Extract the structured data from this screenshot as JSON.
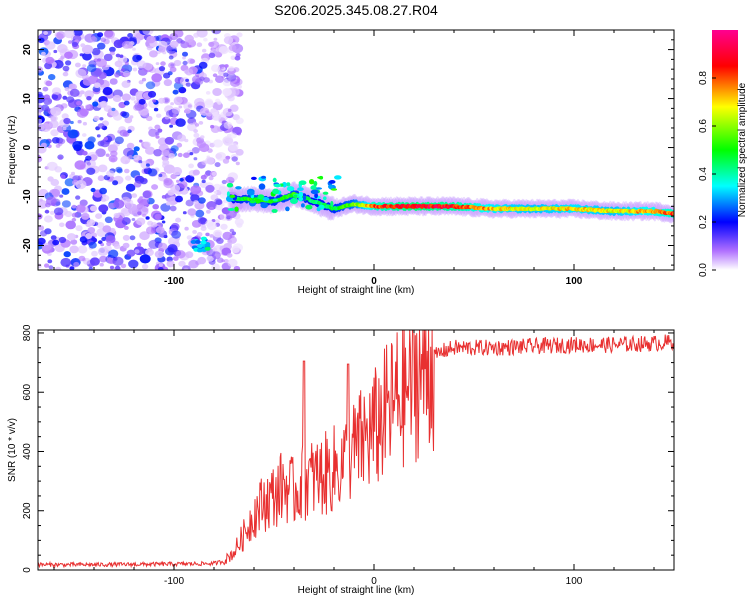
{
  "title": "S206.2025.345.08.27.R04",
  "colorbar": {
    "label": "Normalized spectral amplitude",
    "ticks": [
      0.0,
      0.2,
      0.4,
      0.6,
      0.8
    ],
    "tick_labels": [
      "0.0",
      "0.2",
      "0.4",
      "0.6",
      "0.8"
    ],
    "range": [
      0,
      1
    ],
    "colors": [
      "#ffffff",
      "#a050ff",
      "#0000ff",
      "#00ffff",
      "#00ff00",
      "#ffff00",
      "#ff0000",
      "#ff0080"
    ]
  },
  "chart_data": [
    {
      "type": "heatmap",
      "xlabel": "Height of straight line (km)",
      "ylabel": "Frequency (Hz)",
      "xlim": [
        -168,
        150
      ],
      "ylim": [
        -25,
        24
      ],
      "x_ticks": [
        -100,
        0,
        100
      ],
      "x_tick_labels": [
        "-100",
        "0",
        "100"
      ],
      "y_ticks": [
        -20,
        -10,
        0,
        10,
        20
      ],
      "y_tick_labels": [
        "-20",
        "-10",
        "0",
        "10",
        "20"
      ],
      "noise_region_x": [
        -168,
        -73
      ],
      "ridge": {
        "x": [
          -72,
          -60,
          -50,
          -40,
          -30,
          -20,
          -10,
          0,
          20,
          40,
          60,
          80,
          100,
          120,
          140,
          150
        ],
        "freq": [
          -10.5,
          -10.5,
          -11,
          -9.5,
          -11,
          -12.5,
          -11.5,
          -12,
          -12,
          -12,
          -12.5,
          -12.5,
          -12.5,
          -13,
          -13,
          -13.5
        ],
        "amplitude": [
          0.45,
          0.55,
          0.5,
          0.55,
          0.45,
          0.5,
          0.6,
          0.85,
          0.95,
          0.9,
          0.75,
          0.7,
          0.75,
          0.7,
          0.8,
          0.85
        ]
      }
    },
    {
      "type": "line",
      "xlabel": "Height of straight line (km)",
      "ylabel": "SNR (10 * v/v)",
      "xlim": [
        -168,
        150
      ],
      "ylim": [
        0,
        810
      ],
      "x_ticks": [
        -100,
        0,
        100
      ],
      "x_tick_labels": [
        "-100",
        "0",
        "100"
      ],
      "y_ticks": [
        0,
        200,
        400,
        600,
        800
      ],
      "y_tick_labels": [
        "0",
        "200",
        "400",
        "600",
        "800"
      ],
      "color": "#e83030",
      "x": [
        -168,
        -140,
        -100,
        -80,
        -75,
        -70,
        -65,
        -60,
        -55,
        -50,
        -45,
        -40,
        -35,
        -30,
        -25,
        -20,
        -15,
        -10,
        -5,
        0,
        5,
        10,
        15,
        20,
        25,
        30,
        35,
        40,
        45,
        50,
        60,
        80,
        100,
        120,
        140,
        150
      ],
      "y": [
        18,
        18,
        20,
        22,
        30,
        60,
        120,
        190,
        230,
        250,
        290,
        260,
        300,
        310,
        320,
        340,
        360,
        400,
        440,
        470,
        520,
        560,
        610,
        650,
        690,
        720,
        740,
        750,
        750,
        750,
        750,
        755,
        760,
        760,
        765,
        770
      ],
      "spikes": [
        {
          "x": -35,
          "y": 705
        },
        {
          "x": -13,
          "y": 695
        }
      ]
    }
  ]
}
